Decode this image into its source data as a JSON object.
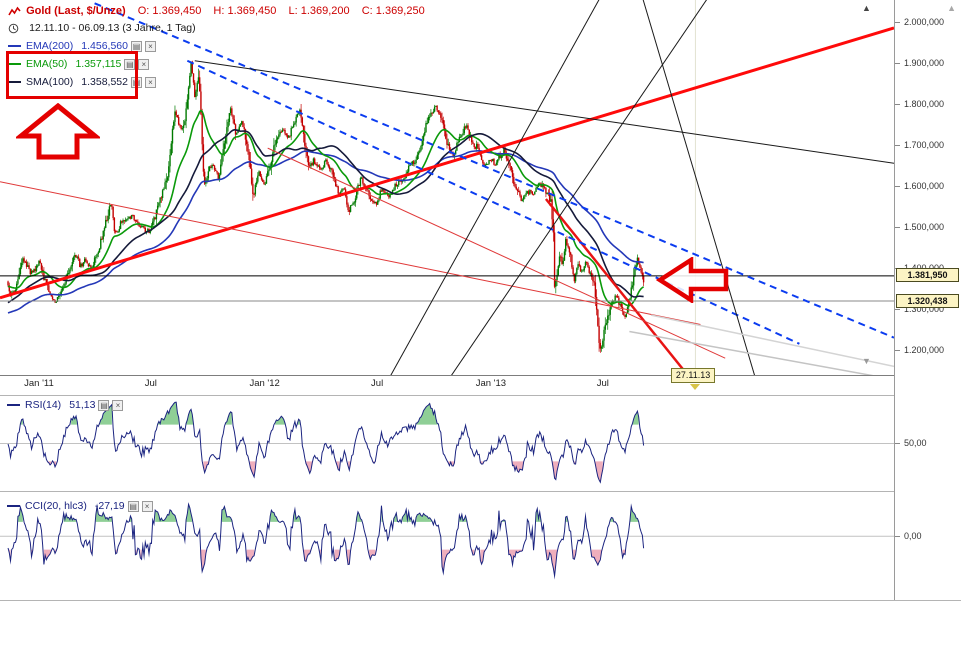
{
  "window": {
    "bg": "#ffffff"
  },
  "icons": {
    "settings": "▤",
    "close": "×",
    "up": "▲",
    "down": "▼"
  },
  "header": {
    "symbol": "Gold (Last, $/Unze)",
    "o": "O: 1.369,450",
    "h": "H: 1.369,450",
    "l": "L: 1.369,200",
    "c": "C: 1.369,250",
    "timeframe": "12.11.10 - 06.09.13 (3 Jahre, 1 Tag)"
  },
  "chart_data": {
    "type": "candlestick",
    "title": "Gold (Last, $/Unze)",
    "period_label": "12.11.10 - 06.09.13 (3 Jahre, 1 Tag)",
    "x_range_days": [
      -13,
      1433
    ],
    "ylim": [
      1139,
      2053
    ],
    "x_ticks": [
      {
        "label": "Jan '11",
        "day": 50
      },
      {
        "label": "Jul",
        "day": 231
      },
      {
        "label": "Jan '12",
        "day": 415
      },
      {
        "label": "Jul",
        "day": 597
      },
      {
        "label": "Jan '13",
        "day": 781
      },
      {
        "label": "Jul",
        "day": 962
      }
    ],
    "y_ticks": [
      {
        "label": "2.000,000",
        "price": 2000
      },
      {
        "label": "1.900,000",
        "price": 1900
      },
      {
        "label": "1.800,000",
        "price": 1800
      },
      {
        "label": "1.700,000",
        "price": 1700
      },
      {
        "label": "1.600,000",
        "price": 1600
      },
      {
        "label": "1.500,000",
        "price": 1500
      },
      {
        "label": "1.400,000",
        "price": 1400
      },
      {
        "label": "1.300,000",
        "price": 1300
      },
      {
        "label": "1.200,000",
        "price": 1200
      }
    ],
    "candle_colors": {
      "up": "#007a00",
      "down": "#c40000"
    },
    "price_path": [
      [
        -180,
        1228
      ],
      [
        -150,
        1182
      ],
      [
        -120,
        1246
      ],
      [
        -90,
        1242
      ],
      [
        -60,
        1302
      ],
      [
        -30,
        1346
      ],
      [
        -10,
        1390
      ],
      [
        0,
        1365
      ],
      [
        4,
        1338
      ],
      [
        14,
        1352
      ],
      [
        24,
        1423
      ],
      [
        38,
        1386
      ],
      [
        52,
        1413
      ],
      [
        62,
        1360
      ],
      [
        76,
        1316
      ],
      [
        90,
        1350
      ],
      [
        110,
        1434
      ],
      [
        118,
        1404
      ],
      [
        126,
        1420
      ],
      [
        135,
        1395
      ],
      [
        150,
        1458
      ],
      [
        168,
        1563
      ],
      [
        174,
        1481
      ],
      [
        186,
        1516
      ],
      [
        200,
        1528
      ],
      [
        215,
        1500
      ],
      [
        231,
        1487
      ],
      [
        245,
        1555
      ],
      [
        259,
        1628
      ],
      [
        271,
        1788
      ],
      [
        278,
        1740
      ],
      [
        286,
        1750
      ],
      [
        297,
        1898
      ],
      [
        303,
        1822
      ],
      [
        310,
        1870
      ],
      [
        318,
        1598
      ],
      [
        330,
        1655
      ],
      [
        342,
        1620
      ],
      [
        350,
        1700
      ],
      [
        361,
        1795
      ],
      [
        370,
        1720
      ],
      [
        380,
        1755
      ],
      [
        390,
        1680
      ],
      [
        398,
        1572
      ],
      [
        406,
        1640
      ],
      [
        415,
        1598
      ],
      [
        425,
        1650
      ],
      [
        435,
        1720
      ],
      [
        445,
        1740
      ],
      [
        455,
        1720
      ],
      [
        465,
        1760
      ],
      [
        473,
        1784
      ],
      [
        481,
        1700
      ],
      [
        488,
        1642
      ],
      [
        495,
        1660
      ],
      [
        505,
        1640
      ],
      [
        515,
        1660
      ],
      [
        525,
        1640
      ],
      [
        535,
        1580
      ],
      [
        545,
        1592
      ],
      [
        551,
        1536
      ],
      [
        560,
        1560
      ],
      [
        572,
        1620
      ],
      [
        580,
        1590
      ],
      [
        594,
        1550
      ],
      [
        605,
        1590
      ],
      [
        616,
        1575
      ],
      [
        628,
        1600
      ],
      [
        640,
        1615
      ],
      [
        648,
        1640
      ],
      [
        658,
        1660
      ],
      [
        668,
        1690
      ],
      [
        680,
        1765
      ],
      [
        692,
        1790
      ],
      [
        700,
        1775
      ],
      [
        710,
        1710
      ],
      [
        721,
        1675
      ],
      [
        731,
        1715
      ],
      [
        742,
        1752
      ],
      [
        752,
        1700
      ],
      [
        760,
        1695
      ],
      [
        769,
        1648
      ],
      [
        778,
        1660
      ],
      [
        790,
        1658
      ],
      [
        803,
        1686
      ],
      [
        812,
        1655
      ],
      [
        820,
        1605
      ],
      [
        831,
        1564
      ],
      [
        840,
        1590
      ],
      [
        850,
        1575
      ],
      [
        859,
        1610
      ],
      [
        868,
        1598
      ],
      [
        879,
        1560
      ],
      [
        883,
        1480
      ],
      [
        885,
        1352
      ],
      [
        888,
        1380
      ],
      [
        893,
        1426
      ],
      [
        898,
        1410
      ],
      [
        903,
        1468
      ],
      [
        910,
        1440
      ],
      [
        917,
        1360
      ],
      [
        922,
        1408
      ],
      [
        928,
        1390
      ],
      [
        935,
        1413
      ],
      [
        942,
        1390
      ],
      [
        949,
        1365
      ],
      [
        953,
        1300
      ],
      [
        958,
        1192
      ],
      [
        962,
        1212
      ],
      [
        966,
        1252
      ],
      [
        972,
        1283
      ],
      [
        978,
        1320
      ],
      [
        984,
        1332
      ],
      [
        990,
        1310
      ],
      [
        999,
        1285
      ],
      [
        1006,
        1320
      ],
      [
        1012,
        1370
      ],
      [
        1019,
        1418
      ],
      [
        1024,
        1392
      ],
      [
        1029,
        1369
      ]
    ],
    "overlays": [
      {
        "name": "EMA(200)",
        "value": "1.456,560",
        "color": "#2438b8",
        "kind": "ema",
        "period": 200
      },
      {
        "name": "EMA(50)",
        "value": "1.357,115",
        "color": "#0a9a0a",
        "kind": "ema",
        "period": 50
      },
      {
        "name": "SMA(100)",
        "value": "1.358,552",
        "color": "#151a3a",
        "kind": "sma",
        "period": 100
      }
    ],
    "levels": [
      {
        "label": "1.381,950",
        "price": 1381.95,
        "color": "#000000"
      },
      {
        "label": "1.320,438",
        "price": 1320.438,
        "color": "#8a8a8a"
      }
    ],
    "date_marker": {
      "label": "27.11.13",
      "day": 1111
    },
    "trendlines": [
      {
        "name": "major-uptrend",
        "pts": [
          [
            -13,
            1327
          ],
          [
            1433,
            1985
          ]
        ],
        "color": "#ff0a0a",
        "width": 3,
        "dash": []
      },
      {
        "name": "downtrend-2013",
        "pts": [
          [
            870,
            1568
          ],
          [
            1105,
            1128
          ]
        ],
        "color": "#e81414",
        "width": 2.5,
        "dash": []
      },
      {
        "name": "resistance-long",
        "pts": [
          [
            -13,
            1610
          ],
          [
            1120,
            1262
          ]
        ],
        "color": "#e03a3a",
        "width": 1,
        "dash": []
      },
      {
        "name": "resistance-mid",
        "pts": [
          [
            420,
            1692
          ],
          [
            1160,
            1180
          ]
        ],
        "color": "#e03a3a",
        "width": 1,
        "dash": []
      },
      {
        "name": "channel-upper-dashed",
        "pts": [
          [
            140,
            2045
          ],
          [
            1433,
            1230
          ]
        ],
        "color": "#0b3cf0",
        "width": 2,
        "dash": [
          7,
          5
        ]
      },
      {
        "name": "channel-lower-dashed",
        "pts": [
          [
            290,
            1905
          ],
          [
            1280,
            1215
          ]
        ],
        "color": "#0b3cf0",
        "width": 2,
        "dash": [
          7,
          5
        ]
      },
      {
        "name": "fan-up-a",
        "pts": [
          [
            605,
            1100
          ],
          [
            960,
            2065
          ]
        ],
        "color": "#1a1a1a",
        "width": 1,
        "dash": []
      },
      {
        "name": "fan-up-b",
        "pts": [
          [
            700,
            1100
          ],
          [
            1135,
            2065
          ]
        ],
        "color": "#1a1a1a",
        "width": 1,
        "dash": []
      },
      {
        "name": "fan-down",
        "pts": [
          [
            1025,
            2065
          ],
          [
            1215,
            1100
          ]
        ],
        "color": "#1a1a1a",
        "width": 1,
        "dash": []
      },
      {
        "name": "peak-resistance",
        "pts": [
          [
            302,
            1905
          ],
          [
            1433,
            1655
          ]
        ],
        "color": "#1a1a1a",
        "width": 1,
        "dash": []
      },
      {
        "name": "ghost-a",
        "pts": [
          [
            1005,
            1245
          ],
          [
            1433,
            1128
          ]
        ],
        "color": "#c4c4c4",
        "width": 1.5,
        "dash": []
      },
      {
        "name": "ghost-b",
        "pts": [
          [
            1040,
            1285
          ],
          [
            1433,
            1160
          ]
        ],
        "color": "#d4d4d4",
        "width": 1.5,
        "dash": []
      }
    ],
    "panes": {
      "rsi": {
        "name": "RSI(14)",
        "value": "51,13",
        "period": 14,
        "color": "#1b2480",
        "ylim": [
          0,
          100
        ],
        "mid": 50,
        "mid_label": "50,00",
        "upper": 70,
        "lower": 30,
        "fill_up": "#8fcf96",
        "fill_dn": "#efaebc"
      },
      "cci": {
        "name": "CCI(20, hlc3)",
        "value": "-27,19",
        "period": 20,
        "color": "#1b2480",
        "ylim": [
          -450,
          280
        ],
        "mid": 0,
        "mid_label": "0,00",
        "upper": 100,
        "lower": -100,
        "fill_up": "#8fcf96",
        "fill_dn": "#efaebc"
      }
    }
  }
}
